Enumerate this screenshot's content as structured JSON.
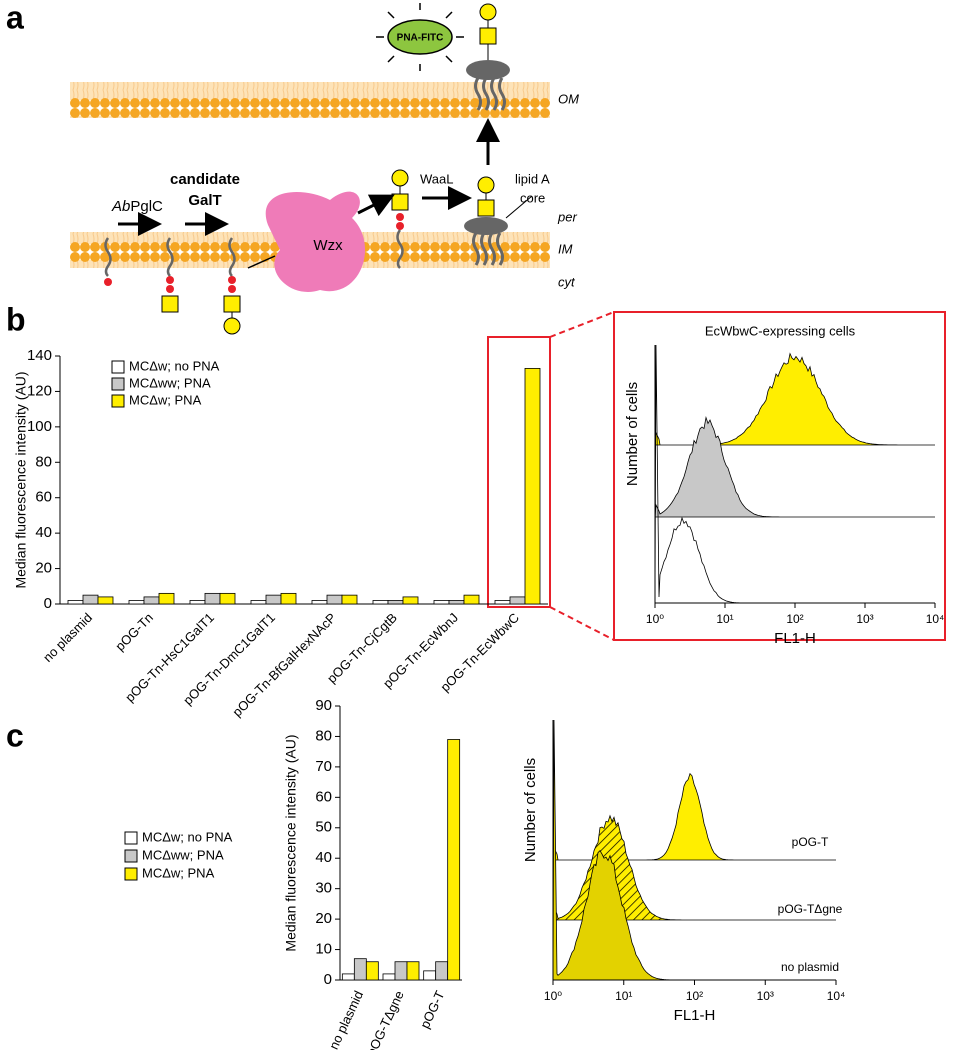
{
  "panel_labels": [
    "a",
    "b",
    "c"
  ],
  "diagram": {
    "pna": "PNA-FITC",
    "om": "OM",
    "ab": "Ab",
    "pglc": "PglC",
    "candidate": "candidate",
    "galt": "GalT",
    "wzx": "Wzx",
    "waal": "WaaL",
    "lipid_a": "lipid A",
    "core": "core",
    "per": "per",
    "im": "IM",
    "cyt": "cyt"
  },
  "chart_data": [
    {
      "type": "bar",
      "ylabel": "Median fluorescence intensity (AU)",
      "categories": [
        "no plasmid",
        "pOG-Tn",
        "pOG-Tn-HsC1GalT1",
        "pOG-Tn-DmC1GalT1",
        "pOG-Tn-BfGalHexNAcP",
        "pOG-Tn-CjCgtB",
        "pOG-Tn-EcWbnJ",
        "pOG-Tn-EcWbwC"
      ],
      "series": [
        {
          "name": "MCΔw; no PNA",
          "color": "#ffffff",
          "values": [
            2,
            2,
            2,
            2,
            2,
            2,
            2,
            2
          ]
        },
        {
          "name": "MCΔww; PNA",
          "color": "#c8c8c8",
          "values": [
            5,
            4,
            6,
            5,
            5,
            2,
            2,
            4
          ]
        },
        {
          "name": "MCΔw; PNA",
          "color": "#ffee00",
          "values": [
            4,
            6,
            6,
            6,
            5,
            4,
            5,
            133
          ]
        }
      ],
      "ylim": [
        0,
        140
      ],
      "yticks": [
        0,
        20,
        40,
        60,
        80,
        100,
        120,
        140
      ],
      "legend": "upper left"
    },
    {
      "type": "flow-histogram",
      "title": "EcWbwC-expressing cells",
      "xlabel": "FL1-H",
      "ylabel": "Number of cells",
      "xscale": "log",
      "xlim": [
        1,
        10000
      ],
      "xticks": [
        {
          "value": 1,
          "label": "10⁰"
        },
        {
          "value": 10,
          "label": "10¹"
        },
        {
          "value": 100,
          "label": "10²"
        },
        {
          "value": 1000,
          "label": "10³"
        },
        {
          "value": 10000,
          "label": "10⁴"
        }
      ]
    },
    {
      "type": "bar",
      "ylabel": "Median fluorescence intensity (AU)",
      "categories": [
        "no plasmid",
        "pOG-TΔgne",
        "pOG-T"
      ],
      "series": [
        {
          "name": "MCΔw; no PNA",
          "color": "#ffffff",
          "values": [
            2,
            2,
            3
          ]
        },
        {
          "name": "MCΔww; PNA",
          "color": "#c8c8c8",
          "values": [
            7,
            6,
            6
          ]
        },
        {
          "name": "MCΔw; PNA",
          "color": "#ffee00",
          "values": [
            6,
            6,
            79
          ]
        }
      ],
      "ylim": [
        0,
        90
      ],
      "yticks": [
        0,
        10,
        20,
        30,
        40,
        50,
        60,
        70,
        80,
        90
      ],
      "legend": "left"
    },
    {
      "type": "flow-histogram",
      "xlabel": "FL1-H",
      "ylabel": "Number of cells",
      "trace_labels": [
        "pOG-T",
        "pOG-TΔgne",
        "no plasmid"
      ],
      "xscale": "log",
      "xlim": [
        1,
        10000
      ],
      "xticks": [
        {
          "value": 1,
          "label": "10⁰"
        },
        {
          "value": 10,
          "label": "10¹"
        },
        {
          "value": 100,
          "label": "10²"
        },
        {
          "value": 1000,
          "label": "10³"
        },
        {
          "value": 10000,
          "label": "10⁴"
        }
      ]
    }
  ]
}
